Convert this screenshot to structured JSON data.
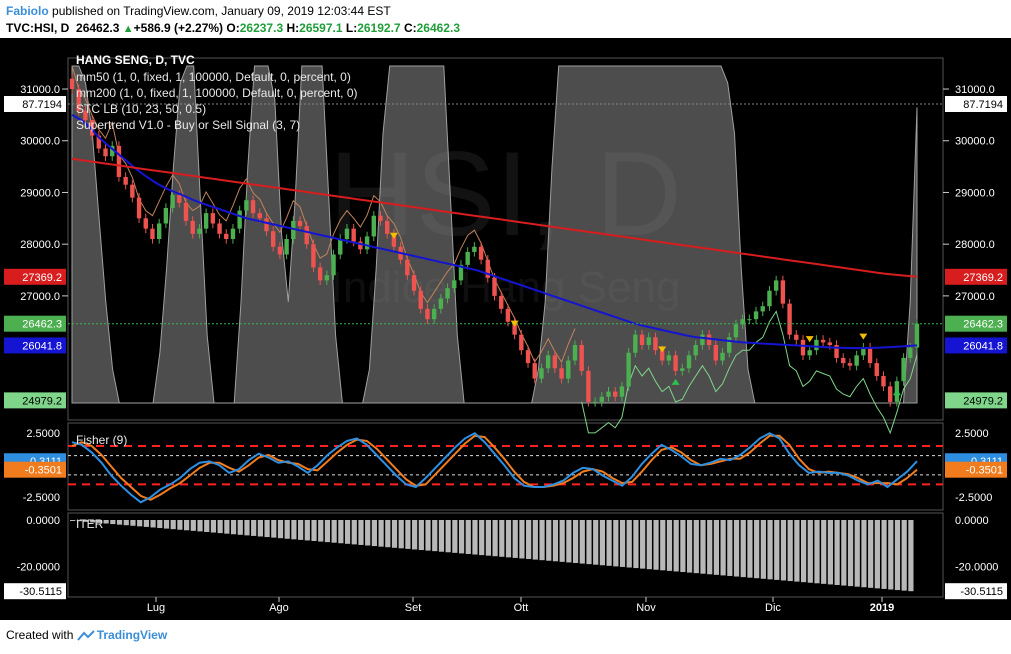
{
  "header": {
    "author": "Fabiolo",
    "published_text": "published on TradingView.com, January 09, 2019 12:03:44 EST",
    "symbol": "TVC:HSI, D",
    "last": "26462.3",
    "change": "+586.9 (+2.27%)",
    "o_label": "O:",
    "o_value": "26237.3",
    "h_label": "H:",
    "h_value": "26597.1",
    "l_label": "L:",
    "l_value": "26192.7",
    "c_label": "C:",
    "c_value": "26462.3"
  },
  "footer": {
    "created_with": "Created with",
    "brand": "TradingView"
  },
  "colors": {
    "background": "#000000",
    "up_candle": "#4caf50",
    "down_candle": "#ef5350",
    "mm50": "#1414d2",
    "mm200": "#d71d1d",
    "stc_fill": "#8c8c8c",
    "supertrend_up": "#7fd58a",
    "supertrend_down": "#c0845a",
    "fisher": "#2e8fe0",
    "trigger": "#f07c1e",
    "level_line": "#ff2222",
    "price_line": "#39b54a",
    "hist": "#b8b8b8",
    "axis_text": "#ffffff"
  },
  "chart_data": [
    {
      "type": "candlestick",
      "title": "HANG SENG, D, TVC",
      "legend": [
        "mm50 (1, 0, fixed, 1, 100000, Default, 0, percent, 0)",
        "mm200 (1, 0, fixed, 1, 100000, Default, 0, percent, 0)",
        "STC LB (10, 23, 50, 0.5)",
        "Supertrend V1.0 - Buy or Sell Signal (3, 7)"
      ],
      "watermark": "HSI, D",
      "watermark_sub": "Indice Hang Seng",
      "x_ticks": [
        "Lug",
        "Ago",
        "Set",
        "Ott",
        "Nov",
        "Dic",
        "2019"
      ],
      "y_ticks": [
        "31000.0",
        "30000.0",
        "29000.0",
        "28000.0",
        "27000.0"
      ],
      "ylim": [
        24600,
        31600
      ],
      "price_labels": {
        "stc_value": "87.7194",
        "mm200": "27369.2",
        "last": "26462.3",
        "mm50": "26041.8",
        "supertrend": "24979.2"
      },
      "closes": [
        31000,
        30580,
        30400,
        30100,
        29850,
        29700,
        29900,
        29300,
        29150,
        28900,
        28500,
        28300,
        28100,
        28400,
        28700,
        28950,
        28800,
        28450,
        28200,
        28300,
        28600,
        28400,
        28200,
        28100,
        28300,
        28650,
        28850,
        28600,
        28500,
        28250,
        27950,
        27800,
        28100,
        28450,
        28350,
        28000,
        27550,
        27300,
        27400,
        27800,
        28100,
        28300,
        28050,
        27900,
        28150,
        28550,
        28450,
        28200,
        27950,
        27700,
        27400,
        27100,
        26750,
        26550,
        26750,
        26950,
        27150,
        27300,
        27600,
        27850,
        27950,
        27700,
        27350,
        27000,
        26750,
        26500,
        26250,
        25950,
        25700,
        25400,
        25600,
        25850,
        25600,
        25400,
        25750,
        26050,
        25550,
        24950,
        24950,
        25050,
        25150,
        25050,
        25250,
        25900,
        26250,
        26050,
        26200,
        25950,
        25750,
        25850,
        25550,
        25600,
        25850,
        26050,
        26250,
        26050,
        25750,
        25900,
        26200,
        26450,
        26550,
        26550,
        26700,
        26800,
        27100,
        27300,
        26850,
        26250,
        26150,
        25850,
        25950,
        26150,
        26100,
        26050,
        25800,
        25700,
        25650,
        25850,
        26000,
        25700,
        25450,
        25250,
        24950,
        25350,
        25800,
        26000,
        26462.3
      ],
      "mm50": [
        30500,
        30400,
        30250,
        30050,
        29900,
        29750,
        29600,
        29450,
        29320,
        29200,
        29100,
        29020,
        28950,
        28870,
        28800,
        28740,
        28680,
        28620,
        28560,
        28500,
        28460,
        28420,
        28380,
        28340,
        28300,
        28260,
        28220,
        28180,
        28140,
        28100,
        28060,
        28020,
        27980,
        27940,
        27900,
        27860,
        27820,
        27780,
        27740,
        27700,
        27660,
        27620,
        27580,
        27540,
        27500,
        27440,
        27380,
        27320,
        27260,
        27200,
        27140,
        27080,
        27020,
        26960,
        26900,
        26840,
        26780,
        26720,
        26660,
        26600,
        26540,
        26480,
        26430,
        26390,
        26350,
        26310,
        26270,
        26230,
        26200,
        26180,
        26160,
        26140,
        26120,
        26100,
        26090,
        26080,
        26070,
        26060,
        26050,
        26040,
        26030,
        26020,
        26010,
        26000,
        25995,
        25990,
        25990,
        25995,
        26000,
        26010,
        26020,
        26030,
        26041.8
      ],
      "mm200": [
        29650,
        29620,
        29590,
        29560,
        29530,
        29500,
        29470,
        29440,
        29410,
        29380,
        29350,
        29320,
        29290,
        29260,
        29230,
        29200,
        29170,
        29140,
        29110,
        29080,
        29050,
        29020,
        28990,
        28960,
        28930,
        28900,
        28870,
        28840,
        28810,
        28780,
        28750,
        28720,
        28690,
        28660,
        28630,
        28600,
        28570,
        28540,
        28510,
        28480,
        28450,
        28420,
        28390,
        28360,
        28330,
        28300,
        28270,
        28240,
        28210,
        28180,
        28150,
        28120,
        28090,
        28060,
        28030,
        28000,
        27970,
        27940,
        27910,
        27880,
        27850,
        27820,
        27790,
        27760,
        27730,
        27700,
        27670,
        27640,
        27610,
        27580,
        27550,
        27520,
        27490,
        27460,
        27430,
        27410,
        27390,
        27369.2
      ],
      "stc": [
        100,
        100,
        95,
        80,
        55,
        30,
        10,
        0,
        0,
        0,
        0,
        0,
        0,
        15,
        40,
        70,
        95,
        100,
        100,
        60,
        20,
        0,
        0,
        0,
        0,
        30,
        70,
        100,
        100,
        100,
        90,
        50,
        30,
        60,
        100,
        100,
        100,
        100,
        60,
        20,
        0,
        0,
        0,
        0,
        10,
        40,
        80,
        100,
        100,
        100,
        100,
        100,
        100,
        100,
        100,
        100,
        60,
        20,
        0,
        0,
        0,
        0,
        0,
        0,
        0,
        0,
        0,
        0,
        0,
        10,
        30,
        70,
        100,
        100,
        100,
        100,
        100,
        100,
        100,
        100,
        100,
        100,
        100,
        100,
        100,
        100,
        100,
        100,
        100,
        100,
        100,
        100,
        100,
        100,
        100,
        100,
        100,
        95,
        80,
        40,
        10,
        0,
        0,
        0,
        0,
        0,
        0,
        0,
        0,
        0,
        0,
        0,
        0,
        0,
        0,
        0,
        0,
        0,
        0,
        0,
        0,
        0,
        0,
        0,
        30,
        87.7194
      ]
    },
    {
      "type": "line",
      "title": "Fisher (9)",
      "y_ticks": [
        "2.5000",
        "-2.5000"
      ],
      "ylim": [
        -3.5,
        3.3
      ],
      "levels": [
        1.5,
        0.75,
        -0.75,
        -1.5
      ],
      "value_labels": {
        "fisher": "0.3111",
        "trigger": "-0.3501"
      },
      "fisher": [
        1.8,
        1.6,
        1.0,
        0.2,
        -0.8,
        -1.6,
        -2.3,
        -2.9,
        -2.5,
        -1.9,
        -1.5,
        -1.0,
        -0.3,
        0.2,
        0.3,
        0.0,
        -0.6,
        -0.3,
        0.4,
        0.9,
        0.6,
        0.2,
        0.3,
        -0.1,
        -0.6,
        0.0,
        0.8,
        1.4,
        1.9,
        2.1,
        1.6,
        0.8,
        0.0,
        -0.8,
        -1.5,
        -1.7,
        -1.0,
        -0.2,
        0.6,
        1.4,
        2.1,
        2.5,
        1.8,
        0.9,
        0.0,
        -1.0,
        -1.6,
        -1.7,
        -1.7,
        -1.5,
        -1.2,
        -0.6,
        -0.2,
        -0.3,
        -0.8,
        -1.2,
        -1.6,
        -0.9,
        0.1,
        0.9,
        1.6,
        1.2,
        0.7,
        0.1,
        0.0,
        0.2,
        0.5,
        0.4,
        0.8,
        1.4,
        2.1,
        2.5,
        2.1,
        0.9,
        0.0,
        -0.6,
        -0.5,
        -0.6,
        -0.6,
        -0.8,
        -1.2,
        -1.5,
        -1.2,
        -1.7,
        -1.1,
        -0.5,
        0.3111
      ],
      "trigger": [
        1.5,
        1.8,
        1.5,
        0.8,
        -0.1,
        -1.0,
        -1.7,
        -2.4,
        -2.7,
        -2.3,
        -1.8,
        -1.4,
        -0.8,
        -0.2,
        0.2,
        0.2,
        -0.2,
        -0.5,
        0.0,
        0.6,
        0.8,
        0.4,
        0.2,
        0.1,
        -0.3,
        -0.4,
        0.3,
        1.0,
        1.6,
        2.0,
        1.9,
        1.3,
        0.5,
        -0.3,
        -1.1,
        -1.6,
        -1.5,
        -0.7,
        0.1,
        0.9,
        1.7,
        2.3,
        2.2,
        1.4,
        0.5,
        -0.5,
        -1.3,
        -1.7,
        -1.7,
        -1.6,
        -1.4,
        -1.0,
        -0.5,
        -0.3,
        -0.5,
        -1.0,
        -1.4,
        -1.3,
        -0.5,
        0.4,
        1.2,
        1.4,
        1.0,
        0.4,
        0.0,
        0.1,
        0.3,
        0.5,
        0.5,
        1.0,
        1.7,
        2.3,
        2.3,
        1.6,
        0.5,
        -0.3,
        -0.6,
        -0.5,
        -0.6,
        -0.7,
        -1.0,
        -1.4,
        -1.4,
        -1.4,
        -1.5,
        -1.0,
        -0.3501
      ]
    },
    {
      "type": "bar",
      "title": "ITER",
      "y_ticks": [
        "0.0000",
        "-20.0000"
      ],
      "ylim": [
        -33,
        3
      ],
      "value_label": "-30.5115",
      "count": 126,
      "start": -0.3,
      "end": -30.5115
    }
  ]
}
